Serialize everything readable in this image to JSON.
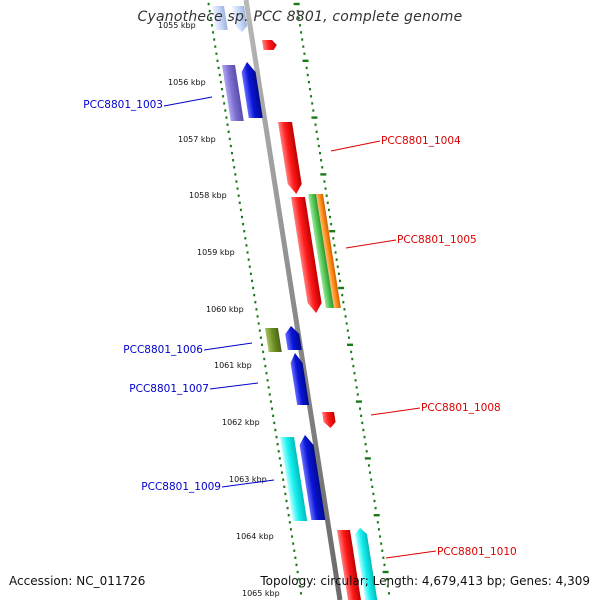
{
  "title": "Cyanothece sp. PCC 8801, complete genome",
  "footer": {
    "accession": "Accession: NC_011726",
    "summary": "Topology: circular; Length: 4,679,413 bp; Genes: 4,309"
  },
  "scale": {
    "unit": "kbp",
    "ticks": [
      "1055 kbp",
      "1056 kbp",
      "1057 kbp",
      "1058 kbp",
      "1059 kbp",
      "1060 kbp",
      "1061 kbp",
      "1062 kbp",
      "1063 kbp",
      "1064 kbp",
      "1065 kbp"
    ]
  },
  "colors": {
    "backbone": "#8c8c8c",
    "ticks": "#1a7a1a",
    "label_left": "#0000cc",
    "label_right": "#dd0000",
    "red": "#ff1a1a",
    "blue": "#0a14d8",
    "purple": "#7d6fd0",
    "cyan": "#18f0f0",
    "green": "#4dc24d",
    "orange": "#ff8c14",
    "olive": "#6b8e23",
    "pale_blue": "#c8d8f8"
  },
  "labels": {
    "left": [
      "PCC8801_1003",
      "PCC8801_1006",
      "PCC8801_1007",
      "PCC8801_1009"
    ],
    "right": [
      "PCC8801_1004",
      "PCC8801_1005",
      "PCC8801_1008",
      "PCC8801_1010"
    ]
  }
}
